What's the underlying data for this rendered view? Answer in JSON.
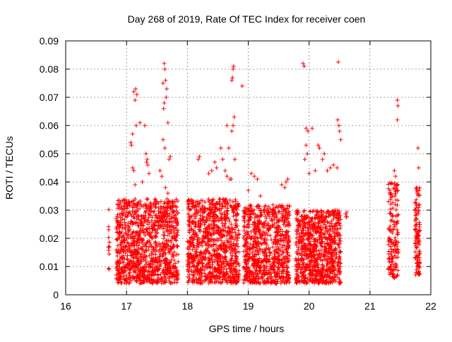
{
  "chart_data": {
    "type": "scatter",
    "title": "Day 268 of 2019, Rate Of TEC Index for receiver coen",
    "xlabel": "GPS time / hours",
    "ylabel": "ROTI / TECUs",
    "xlim": [
      16,
      22
    ],
    "ylim": [
      0,
      0.09
    ],
    "xticks": [
      16,
      17,
      18,
      19,
      20,
      21,
      22
    ],
    "yticks": [
      0,
      0.01,
      0.02,
      0.03,
      0.04,
      0.05,
      0.06,
      0.07,
      0.08,
      0.09
    ],
    "xtick_labels": [
      "16",
      "17",
      "18",
      "19",
      "20",
      "21",
      "22"
    ],
    "ytick_labels": [
      "0",
      "0.01",
      "0.02",
      "0.03",
      "0.04",
      "0.05",
      "0.06",
      "0.07",
      "0.08",
      "0.09"
    ],
    "grid": true,
    "marker": "plus",
    "marker_color": "#ff0000",
    "series": [
      {
        "name": "ROTI",
        "bands": [
          {
            "x_start": 16.7,
            "x_end": 16.72,
            "y_min": 0.009,
            "y_max": 0.032,
            "count": 12
          },
          {
            "x_start": 16.83,
            "x_end": 17.85,
            "y_min": 0.004,
            "y_max": 0.034,
            "count": 1100
          },
          {
            "x_start": 18.0,
            "x_end": 18.85,
            "y_min": 0.004,
            "y_max": 0.034,
            "count": 950
          },
          {
            "x_start": 18.92,
            "x_end": 19.68,
            "y_min": 0.004,
            "y_max": 0.032,
            "count": 820
          },
          {
            "x_start": 19.78,
            "x_end": 20.52,
            "y_min": 0.004,
            "y_max": 0.03,
            "count": 850
          },
          {
            "x_start": 20.6,
            "x_end": 20.62,
            "y_min": 0.027,
            "y_max": 0.03,
            "count": 4
          },
          {
            "x_start": 21.3,
            "x_end": 21.47,
            "y_min": 0.006,
            "y_max": 0.04,
            "count": 160
          },
          {
            "x_start": 21.74,
            "x_end": 21.82,
            "y_min": 0.007,
            "y_max": 0.039,
            "count": 110
          }
        ],
        "points": [
          [
            17.12,
            0.072
          ],
          [
            17.15,
            0.073
          ],
          [
            17.17,
            0.071
          ],
          [
            17.14,
            0.069
          ],
          [
            17.16,
            0.06
          ],
          [
            17.1,
            0.057
          ],
          [
            17.07,
            0.054
          ],
          [
            17.08,
            0.053
          ],
          [
            17.3,
            0.06
          ],
          [
            17.22,
            0.061
          ],
          [
            17.32,
            0.05
          ],
          [
            17.34,
            0.048
          ],
          [
            17.33,
            0.047
          ],
          [
            17.35,
            0.046
          ],
          [
            17.37,
            0.043
          ],
          [
            17.1,
            0.045
          ],
          [
            17.12,
            0.044
          ],
          [
            17.14,
            0.039
          ],
          [
            17.26,
            0.04
          ],
          [
            17.62,
            0.082
          ],
          [
            17.63,
            0.08
          ],
          [
            17.6,
            0.075
          ],
          [
            17.64,
            0.076
          ],
          [
            17.66,
            0.073
          ],
          [
            17.65,
            0.07
          ],
          [
            17.62,
            0.068
          ],
          [
            17.61,
            0.066
          ],
          [
            17.68,
            0.061
          ],
          [
            17.6,
            0.055
          ],
          [
            17.63,
            0.052
          ],
          [
            17.72,
            0.049
          ],
          [
            17.7,
            0.048
          ],
          [
            17.58,
            0.042
          ],
          [
            17.64,
            0.038
          ],
          [
            17.55,
            0.044
          ],
          [
            17.68,
            0.036
          ],
          [
            18.2,
            0.049
          ],
          [
            18.18,
            0.048
          ],
          [
            18.45,
            0.047
          ],
          [
            18.48,
            0.045
          ],
          [
            18.4,
            0.044
          ],
          [
            18.35,
            0.043
          ],
          [
            18.58,
            0.048
          ],
          [
            18.62,
            0.044
          ],
          [
            18.65,
            0.042
          ],
          [
            18.7,
            0.041
          ],
          [
            18.75,
            0.08
          ],
          [
            18.76,
            0.081
          ],
          [
            18.74,
            0.077
          ],
          [
            18.73,
            0.076
          ],
          [
            18.9,
            0.074
          ],
          [
            18.77,
            0.063
          ],
          [
            18.75,
            0.06
          ],
          [
            18.73,
            0.058
          ],
          [
            18.65,
            0.06
          ],
          [
            18.55,
            0.052
          ],
          [
            18.68,
            0.052
          ],
          [
            18.78,
            0.048
          ],
          [
            18.72,
            0.041
          ],
          [
            19.05,
            0.043
          ],
          [
            19.1,
            0.042
          ],
          [
            19.15,
            0.041
          ],
          [
            19.0,
            0.037
          ],
          [
            19.2,
            0.035
          ],
          [
            19.55,
            0.039
          ],
          [
            19.6,
            0.038
          ],
          [
            19.62,
            0.04
          ],
          [
            19.65,
            0.041
          ],
          [
            19.9,
            0.082
          ],
          [
            19.92,
            0.081
          ],
          [
            19.95,
            0.059
          ],
          [
            19.98,
            0.058
          ],
          [
            20.05,
            0.059
          ],
          [
            19.95,
            0.053
          ],
          [
            19.97,
            0.05
          ],
          [
            19.93,
            0.048
          ],
          [
            20.15,
            0.053
          ],
          [
            20.17,
            0.052
          ],
          [
            20.25,
            0.05
          ],
          [
            20.22,
            0.048
          ],
          [
            20.3,
            0.044
          ],
          [
            20.35,
            0.045
          ],
          [
            20.4,
            0.046
          ],
          [
            20.48,
            0.0825
          ],
          [
            20.47,
            0.062
          ],
          [
            20.49,
            0.06
          ],
          [
            20.5,
            0.058
          ],
          [
            20.52,
            0.055
          ],
          [
            20.46,
            0.045
          ],
          [
            20.1,
            0.044
          ],
          [
            20.0,
            0.043
          ],
          [
            21.45,
            0.069
          ],
          [
            21.46,
            0.067
          ],
          [
            21.45,
            0.062
          ],
          [
            21.4,
            0.044
          ],
          [
            21.42,
            0.042
          ],
          [
            21.79,
            0.052
          ],
          [
            21.8,
            0.045
          ]
        ]
      }
    ]
  }
}
